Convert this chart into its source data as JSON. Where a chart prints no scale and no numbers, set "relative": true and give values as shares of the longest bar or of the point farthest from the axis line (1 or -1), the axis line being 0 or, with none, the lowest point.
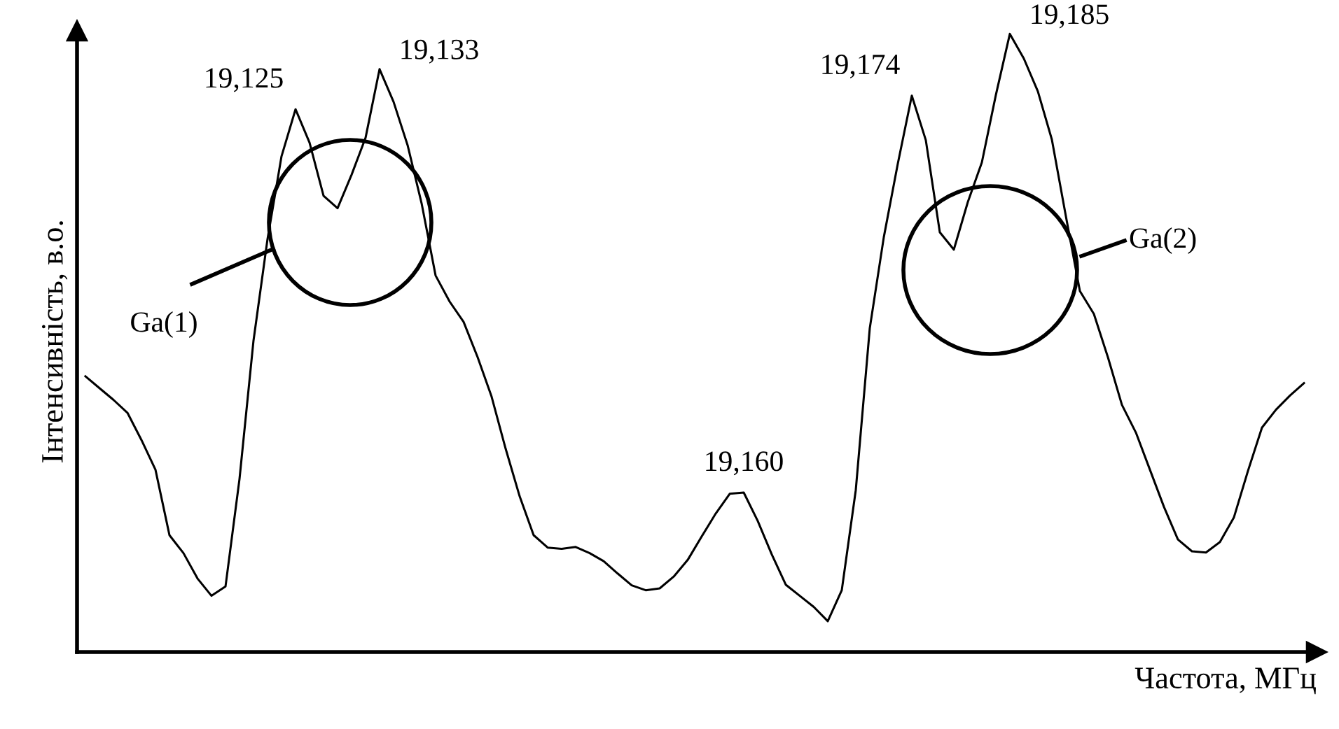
{
  "chart_data": {
    "type": "line",
    "relative": true,
    "xlabel": "Частота, МГц",
    "ylabel": "Інтенсивність, в.о.",
    "categories": [
      null,
      null,
      null,
      null,
      null,
      null,
      null,
      null,
      null,
      null,
      null,
      null,
      null,
      null,
      null,
      null,
      null,
      null,
      null,
      null,
      null,
      null,
      null,
      null,
      null,
      null,
      null,
      null,
      null,
      null,
      null,
      null,
      null,
      null,
      null,
      null,
      null,
      null,
      null,
      null,
      null,
      null,
      null,
      null,
      null,
      null,
      null,
      null,
      null,
      null,
      null,
      null,
      null,
      null,
      null,
      null,
      null,
      null,
      null,
      null,
      null,
      null,
      null,
      null,
      null,
      null,
      null,
      null,
      null,
      null,
      null,
      null,
      null,
      null,
      null,
      null,
      null,
      null,
      null,
      null,
      null,
      null,
      null,
      null,
      null,
      null,
      null,
      null
    ],
    "series": [
      {
        "color": "#000000",
        "values": [
          0.446,
          0.427,
          0.408,
          0.387,
          0.343,
          0.295,
          0.189,
          0.16,
          0.119,
          0.091,
          0.106,
          0.28,
          0.504,
          0.668,
          0.802,
          0.878,
          0.824,
          0.738,
          0.718,
          0.772,
          0.832,
          0.943,
          0.89,
          0.82,
          0.726,
          0.609,
          0.567,
          0.534,
          0.477,
          0.413,
          0.329,
          0.252,
          0.189,
          0.169,
          0.167,
          0.17,
          0.16,
          0.147,
          0.127,
          0.108,
          0.1,
          0.103,
          0.122,
          0.149,
          0.187,
          0.224,
          0.256,
          0.258,
          0.212,
          0.158,
          0.109,
          0.091,
          0.073,
          0.05,
          0.1,
          0.262,
          0.524,
          0.671,
          0.79,
          0.9,
          0.828,
          0.679,
          0.651,
          0.728,
          0.792,
          0.901,
          1.0,
          0.96,
          0.907,
          0.829,
          0.705,
          0.584,
          0.547,
          0.477,
          0.4,
          0.355,
          0.295,
          0.235,
          0.182,
          0.163,
          0.161,
          0.178,
          0.218,
          0.293,
          0.363,
          0.392,
          0.415,
          0.435
        ],
        "name": null
      }
    ],
    "annotations": [
      "Ga(1)",
      "Ga(2)",
      "19,125",
      "19,133",
      "19,160",
      "19,174",
      "19,185"
    ],
    "line_style": "solid",
    "marker": "none",
    "grid": false,
    "legend": false
  }
}
